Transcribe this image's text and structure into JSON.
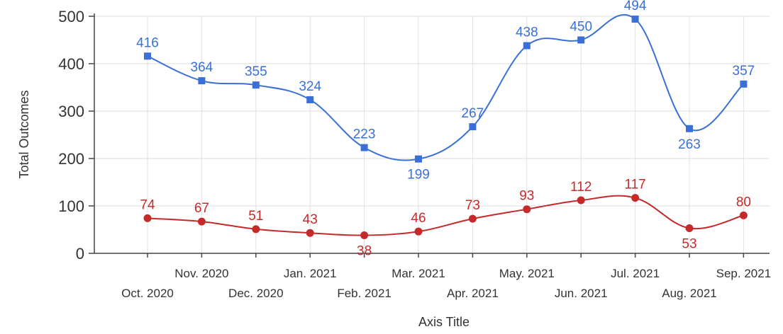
{
  "chart_data": {
    "type": "line",
    "xlabel": "Axis Title",
    "ylabel": "Total Outcomes",
    "ylim": [
      0,
      500
    ],
    "yticks": [
      0,
      100,
      200,
      300,
      400,
      500
    ],
    "grid": true,
    "categories": [
      "Oct. 2020",
      "Nov. 2020",
      "Dec. 2020",
      "Jan. 2021",
      "Feb. 2021",
      "Mar. 2021",
      "Apr. 2021",
      "May. 2021",
      "Jun. 2021",
      "Jul. 2021",
      "Aug. 2021",
      "Sep. 2021"
    ],
    "series": [
      {
        "values": [
          416,
          364,
          355,
          324,
          223,
          199,
          267,
          438,
          450,
          494,
          263,
          357
        ],
        "color": "#3a6fd8",
        "marker": "square"
      },
      {
        "values": [
          74,
          67,
          51,
          43,
          38,
          46,
          73,
          93,
          112,
          117,
          53,
          80
        ],
        "color": "#c42a2a",
        "marker": "circle"
      }
    ]
  }
}
